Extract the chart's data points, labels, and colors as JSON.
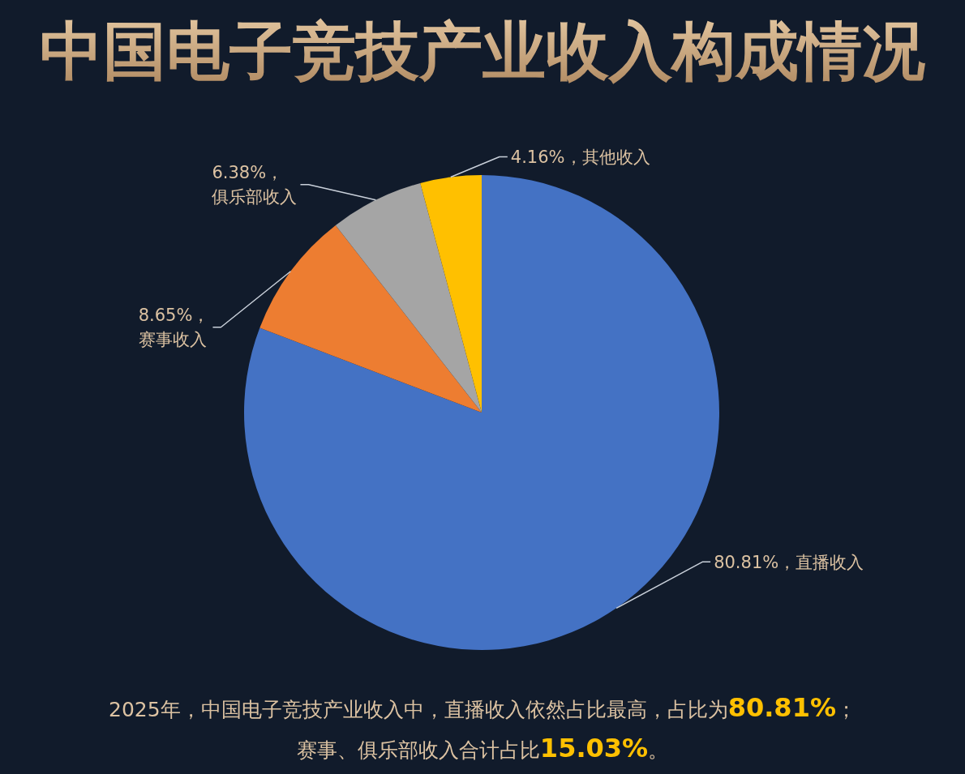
{
  "chart_data": {
    "type": "pie",
    "title": "中国电子竞技产业收入构成情况",
    "categories": [
      "直播收入",
      "赛事收入",
      "俱乐部收入",
      "其他收入"
    ],
    "values": [
      80.81,
      8.65,
      6.38,
      4.16
    ],
    "colors": [
      "#4472c4",
      "#ed7d31",
      "#a5a5a5",
      "#ffc000"
    ],
    "value_labels": [
      "80.81%，",
      "8.65%，",
      "6.38%，",
      "4.16%，"
    ],
    "annotations": [
      "2025年，中国电子竞技产业收入中，直播收入依然占比最高，占比为**80.81%**；",
      "赛事、俱乐部收入合计占比**15.03%**。"
    ]
  }
}
